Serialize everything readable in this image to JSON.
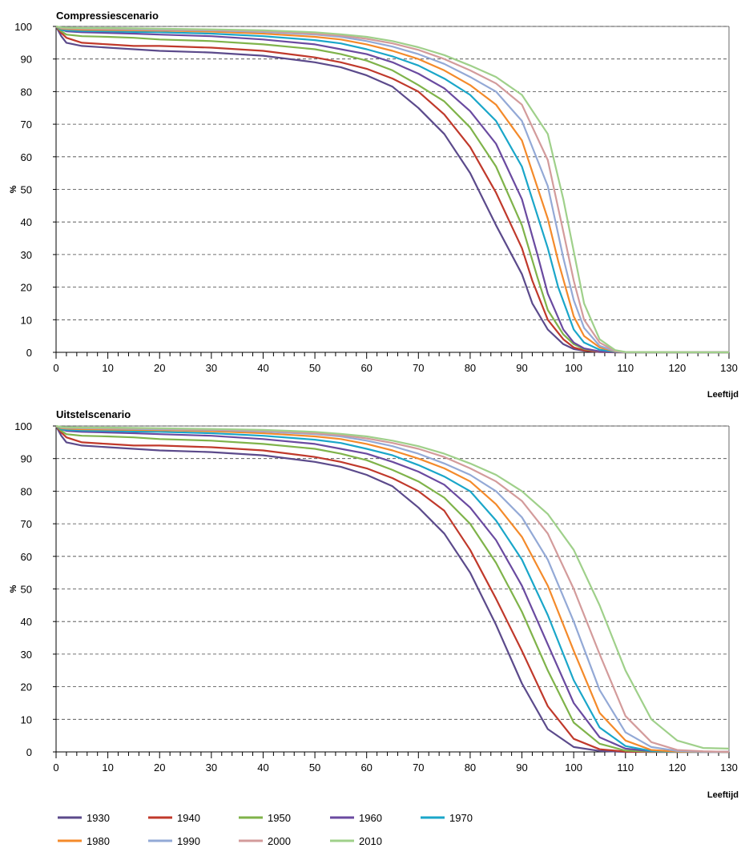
{
  "colors": {
    "1930": "#5b4a8b",
    "1940": "#c0392b",
    "1950": "#7fb34a",
    "1960": "#6a4aa0",
    "1970": "#1aa6c9",
    "1980": "#f48a2a",
    "1990": "#93a9d6",
    "2000": "#d39b9b",
    "2010": "#9fd08a"
  },
  "chart_data": [
    {
      "type": "line",
      "title": "Compressiescenario",
      "xlabel": "Leeftijd",
      "ylabel": "%",
      "xlim": [
        0,
        130
      ],
      "ylim": [
        0,
        100
      ],
      "xticks": [
        0,
        10,
        20,
        30,
        40,
        50,
        60,
        70,
        80,
        90,
        100,
        110,
        120,
        130
      ],
      "yticks": [
        0,
        10,
        20,
        30,
        40,
        50,
        60,
        70,
        80,
        90,
        100
      ],
      "grid": "horizontal-dashed",
      "series": [
        {
          "name": "1930",
          "x": [
            0,
            1,
            2,
            5,
            10,
            15,
            20,
            30,
            40,
            50,
            55,
            60,
            65,
            70,
            75,
            80,
            85,
            90,
            92,
            95,
            98,
            100,
            102,
            105,
            108,
            110,
            130
          ],
          "y": [
            100,
            97,
            95,
            94,
            93.5,
            93,
            92.5,
            92,
            91,
            89,
            87.5,
            85,
            81.5,
            75,
            67,
            55,
            39,
            24,
            15,
            7,
            2.5,
            1,
            0.5,
            0.1,
            0,
            0,
            0
          ]
        },
        {
          "name": "1940",
          "x": [
            0,
            1,
            2,
            5,
            10,
            15,
            20,
            30,
            40,
            50,
            55,
            60,
            65,
            70,
            75,
            80,
            85,
            90,
            92,
            95,
            98,
            100,
            102,
            105,
            108,
            110,
            130
          ],
          "y": [
            100,
            98,
            96.5,
            95,
            94.5,
            94,
            94,
            93.5,
            92.5,
            90.5,
            89,
            87,
            84,
            80,
            73,
            63,
            49,
            32,
            22,
            10,
            4,
            1.5,
            0.6,
            0.2,
            0,
            0,
            0
          ]
        },
        {
          "name": "1950",
          "x": [
            0,
            1,
            2,
            5,
            10,
            15,
            20,
            30,
            40,
            50,
            55,
            60,
            65,
            70,
            75,
            80,
            85,
            90,
            93,
            95,
            98,
            100,
            102,
            105,
            108,
            110,
            130
          ],
          "y": [
            100,
            98.5,
            97.5,
            97,
            96.8,
            96.5,
            96,
            95.5,
            94.5,
            93,
            91.5,
            89.5,
            86.5,
            82,
            77,
            69,
            57,
            39,
            23,
            13,
            5.5,
            2.5,
            1,
            0.3,
            0.1,
            0,
            0
          ]
        },
        {
          "name": "1960",
          "x": [
            0,
            1,
            2,
            5,
            10,
            15,
            20,
            30,
            40,
            50,
            55,
            60,
            65,
            70,
            75,
            80,
            85,
            90,
            93,
            95,
            98,
            100,
            102,
            105,
            108,
            110,
            130
          ],
          "y": [
            100,
            99,
            98.5,
            98.2,
            98,
            97.8,
            97.5,
            97,
            96,
            94.5,
            93,
            91.5,
            89,
            85.5,
            81,
            74,
            64,
            47,
            30,
            18,
            7,
            3,
            1.2,
            0.3,
            0.1,
            0,
            0
          ]
        },
        {
          "name": "1970",
          "x": [
            0,
            1,
            2,
            5,
            10,
            15,
            20,
            30,
            40,
            50,
            55,
            60,
            65,
            70,
            75,
            80,
            85,
            90,
            95,
            97,
            100,
            102,
            105,
            108,
            110,
            130
          ],
          "y": [
            100,
            99,
            98.8,
            98.6,
            98.5,
            98.3,
            98.2,
            97.8,
            97,
            95.8,
            94.8,
            93,
            90.8,
            88,
            84,
            79,
            71,
            57,
            32,
            20,
            7,
            3,
            0.8,
            0.2,
            0,
            0
          ]
        },
        {
          "name": "1980",
          "x": [
            0,
            1,
            2,
            5,
            10,
            15,
            20,
            30,
            40,
            50,
            55,
            60,
            65,
            70,
            75,
            80,
            85,
            90,
            95,
            97,
            100,
            102,
            105,
            108,
            110,
            130
          ],
          "y": [
            100,
            99.3,
            99.2,
            99,
            98.9,
            98.8,
            98.7,
            98.4,
            97.8,
            96.8,
            96,
            94.5,
            92.5,
            90,
            86.5,
            82,
            76,
            65,
            41,
            28,
            11,
            5,
            1.5,
            0.3,
            0,
            0
          ]
        },
        {
          "name": "1990",
          "x": [
            0,
            1,
            2,
            5,
            10,
            15,
            20,
            30,
            40,
            50,
            55,
            60,
            65,
            70,
            75,
            80,
            85,
            90,
            95,
            98,
            100,
            102,
            105,
            108,
            110,
            130
          ],
          "y": [
            100,
            99.5,
            99.4,
            99.3,
            99.2,
            99.1,
            99,
            98.8,
            98.3,
            97.5,
            96.8,
            95.5,
            93.8,
            91.5,
            88.5,
            84.5,
            80,
            71,
            51,
            29,
            16,
            7.5,
            2,
            0.4,
            0,
            0
          ]
        },
        {
          "name": "2000",
          "x": [
            0,
            1,
            2,
            5,
            10,
            15,
            20,
            30,
            40,
            50,
            55,
            60,
            65,
            70,
            75,
            80,
            85,
            90,
            95,
            98,
            100,
            102,
            105,
            108,
            110,
            130
          ],
          "y": [
            100,
            99.6,
            99.5,
            99.4,
            99.3,
            99.3,
            99.2,
            99,
            98.6,
            97.8,
            97.2,
            96.2,
            94.8,
            92.8,
            90,
            86.5,
            82.5,
            76,
            59,
            37,
            22,
            10,
            3,
            0.5,
            0.1,
            0
          ]
        },
        {
          "name": "2010",
          "x": [
            0,
            1,
            2,
            5,
            10,
            15,
            20,
            30,
            40,
            50,
            55,
            60,
            65,
            70,
            75,
            80,
            85,
            90,
            95,
            98,
            100,
            102,
            105,
            108,
            110,
            130
          ],
          "y": [
            100,
            99.7,
            99.6,
            99.5,
            99.5,
            99.4,
            99.3,
            99.1,
            98.8,
            98.2,
            97.6,
            96.8,
            95.5,
            93.6,
            91.2,
            88,
            84.5,
            79,
            67,
            47,
            31,
            15,
            4,
            0.7,
            0.1,
            0
          ]
        }
      ]
    },
    {
      "type": "line",
      "title": "Uitstelscenario",
      "xlabel": "Leeftijd",
      "ylabel": "%",
      "xlim": [
        0,
        130
      ],
      "ylim": [
        0,
        100
      ],
      "xticks": [
        0,
        10,
        20,
        30,
        40,
        50,
        60,
        70,
        80,
        90,
        100,
        110,
        120,
        130
      ],
      "yticks": [
        0,
        10,
        20,
        30,
        40,
        50,
        60,
        70,
        80,
        90,
        100
      ],
      "grid": "horizontal-dashed",
      "series": [
        {
          "name": "1930",
          "x": [
            0,
            1,
            2,
            5,
            10,
            15,
            20,
            30,
            40,
            50,
            55,
            60,
            65,
            70,
            75,
            80,
            85,
            90,
            95,
            100,
            105,
            110,
            130
          ],
          "y": [
            100,
            97,
            95,
            94,
            93.5,
            93,
            92.5,
            92,
            91,
            89,
            87.5,
            85,
            81.5,
            75,
            67,
            55,
            39,
            21,
            7,
            1.5,
            0.3,
            0,
            0
          ]
        },
        {
          "name": "1940",
          "x": [
            0,
            1,
            2,
            5,
            10,
            15,
            20,
            30,
            40,
            50,
            55,
            60,
            65,
            70,
            75,
            80,
            85,
            90,
            95,
            100,
            105,
            110,
            115,
            130
          ],
          "y": [
            100,
            98,
            96.5,
            95,
            94.5,
            94,
            94,
            93.5,
            92.5,
            90.5,
            89,
            87,
            84,
            80,
            74,
            62,
            47,
            31,
            14,
            4,
            0.8,
            0.1,
            0,
            0
          ]
        },
        {
          "name": "1950",
          "x": [
            0,
            1,
            2,
            5,
            10,
            15,
            20,
            30,
            40,
            50,
            55,
            60,
            65,
            70,
            75,
            80,
            85,
            90,
            95,
            100,
            105,
            110,
            115,
            130
          ],
          "y": [
            100,
            98.5,
            97.5,
            97,
            96.8,
            96.5,
            96,
            95.5,
            94.5,
            93,
            91.5,
            89.5,
            86.5,
            83,
            78,
            70,
            58,
            43,
            25,
            9,
            2.5,
            0.4,
            0.1,
            0
          ]
        },
        {
          "name": "1960",
          "x": [
            0,
            1,
            2,
            5,
            10,
            15,
            20,
            30,
            40,
            50,
            55,
            60,
            65,
            70,
            75,
            80,
            85,
            90,
            95,
            100,
            105,
            110,
            115,
            130
          ],
          "y": [
            100,
            99,
            98.5,
            98.2,
            98,
            97.8,
            97.5,
            97,
            96,
            94.5,
            93,
            91.5,
            89,
            86,
            82,
            75,
            65,
            51,
            33,
            15,
            4.5,
            1,
            0.2,
            0
          ]
        },
        {
          "name": "1970",
          "x": [
            0,
            1,
            2,
            5,
            10,
            15,
            20,
            30,
            40,
            50,
            55,
            60,
            65,
            70,
            75,
            80,
            85,
            90,
            95,
            100,
            105,
            110,
            115,
            120,
            130
          ],
          "y": [
            100,
            99,
            98.8,
            98.6,
            98.5,
            98.3,
            98.2,
            97.8,
            97,
            95.8,
            94.8,
            93,
            91,
            88,
            84.5,
            80,
            71,
            59,
            42,
            22,
            7.5,
            1.8,
            0.3,
            0,
            0
          ]
        },
        {
          "name": "1980",
          "x": [
            0,
            1,
            2,
            5,
            10,
            15,
            20,
            30,
            40,
            50,
            55,
            60,
            65,
            70,
            75,
            80,
            85,
            90,
            95,
            100,
            105,
            110,
            115,
            120,
            130
          ],
          "y": [
            100,
            99.3,
            99.2,
            99,
            98.9,
            98.8,
            98.7,
            98.4,
            97.8,
            96.8,
            96,
            94.5,
            92.5,
            90,
            87,
            83,
            76,
            66,
            51,
            31,
            12,
            3.5,
            0.6,
            0.1,
            0
          ]
        },
        {
          "name": "1990",
          "x": [
            0,
            1,
            2,
            5,
            10,
            15,
            20,
            30,
            40,
            50,
            55,
            60,
            65,
            70,
            75,
            80,
            85,
            90,
            95,
            100,
            105,
            110,
            115,
            120,
            125,
            130
          ],
          "y": [
            100,
            99.5,
            99.4,
            99.3,
            99.2,
            99.1,
            99,
            98.8,
            98.3,
            97.5,
            96.8,
            95.5,
            93.8,
            91.5,
            88.5,
            85,
            80,
            72,
            59,
            40,
            19,
            6,
            1.5,
            0.3,
            0.1,
            0
          ]
        },
        {
          "name": "2000",
          "x": [
            0,
            1,
            2,
            5,
            10,
            15,
            20,
            30,
            40,
            50,
            55,
            60,
            65,
            70,
            75,
            80,
            85,
            90,
            95,
            100,
            105,
            110,
            115,
            120,
            125,
            130
          ],
          "y": [
            100,
            99.6,
            99.5,
            99.4,
            99.3,
            99.3,
            99.2,
            99,
            98.6,
            97.8,
            97.2,
            96.2,
            94.8,
            93,
            90.5,
            87,
            83,
            77,
            67,
            50,
            30,
            11,
            3,
            0.6,
            0.2,
            0
          ]
        },
        {
          "name": "2010",
          "x": [
            0,
            1,
            2,
            5,
            10,
            15,
            20,
            30,
            40,
            50,
            55,
            60,
            65,
            70,
            75,
            80,
            85,
            90,
            95,
            100,
            105,
            110,
            115,
            120,
            125,
            130
          ],
          "y": [
            100,
            99.7,
            99.6,
            99.5,
            99.5,
            99.4,
            99.3,
            99.1,
            98.8,
            98.2,
            97.6,
            96.8,
            95.5,
            93.8,
            91.5,
            88.5,
            85,
            80,
            73,
            62,
            45,
            25,
            10,
            3.5,
            1.2,
            1
          ]
        }
      ]
    }
  ],
  "legend": [
    "1930",
    "1940",
    "1950",
    "1960",
    "1970",
    "1980",
    "1990",
    "2000",
    "2010"
  ]
}
